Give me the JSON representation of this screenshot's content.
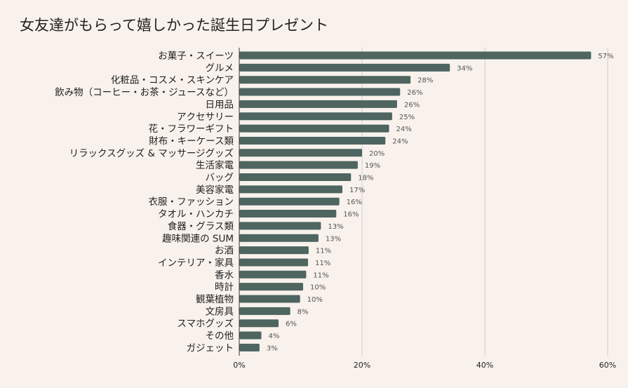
{
  "chart_data": {
    "type": "bar",
    "orientation": "horizontal",
    "title": "女友達がもらって嬉しかった誕生日プレゼント",
    "categories": [
      "お菓子・スイーツ",
      "グルメ",
      "化粧品・コスメ・スキンケア",
      "飲み物（コーヒー・お茶・ジュースなど）",
      "日用品",
      "アクセサリー",
      "花・フラワーギフト",
      "財布・キーケース類",
      "リラックスグッズ & マッサージグッズ",
      "生活家電",
      "バッグ",
      "美容家電",
      "衣服・ファッション",
      "タオル・ハンカチ",
      "食器・グラス類",
      "趣味関連の SUM",
      "お酒",
      "インテリア・家具",
      "香水",
      "時計",
      "観葉植物",
      "文房具",
      "スマホグッズ",
      "その他",
      "ガジェット"
    ],
    "values": [
      57.3,
      34.3,
      27.9,
      26.2,
      25.7,
      24.9,
      24.4,
      23.8,
      20.0,
      19.3,
      18.2,
      16.8,
      16.3,
      15.8,
      13.3,
      12.9,
      11.3,
      11.2,
      10.9,
      10.4,
      9.9,
      8.3,
      6.4,
      3.6,
      3.3
    ],
    "value_labels": [
      "57%",
      "34%",
      "28%",
      "26%",
      "26%",
      "25%",
      "24%",
      "24%",
      "20%",
      "19%",
      "18%",
      "17%",
      "16%",
      "16%",
      "13%",
      "13%",
      "11%",
      "11%",
      "11%",
      "10%",
      "10%",
      "8%",
      "6%",
      "4%",
      "3%"
    ],
    "xlim": [
      0,
      60
    ],
    "xticks": [
      0,
      20,
      40,
      60
    ],
    "xtick_labels": [
      "0%",
      "20%",
      "40%",
      "60%"
    ],
    "xlabel": "",
    "ylabel": "",
    "grid": true,
    "legend": "none",
    "bar_color": "#4e6560",
    "background_color": "#f8f1ec"
  }
}
